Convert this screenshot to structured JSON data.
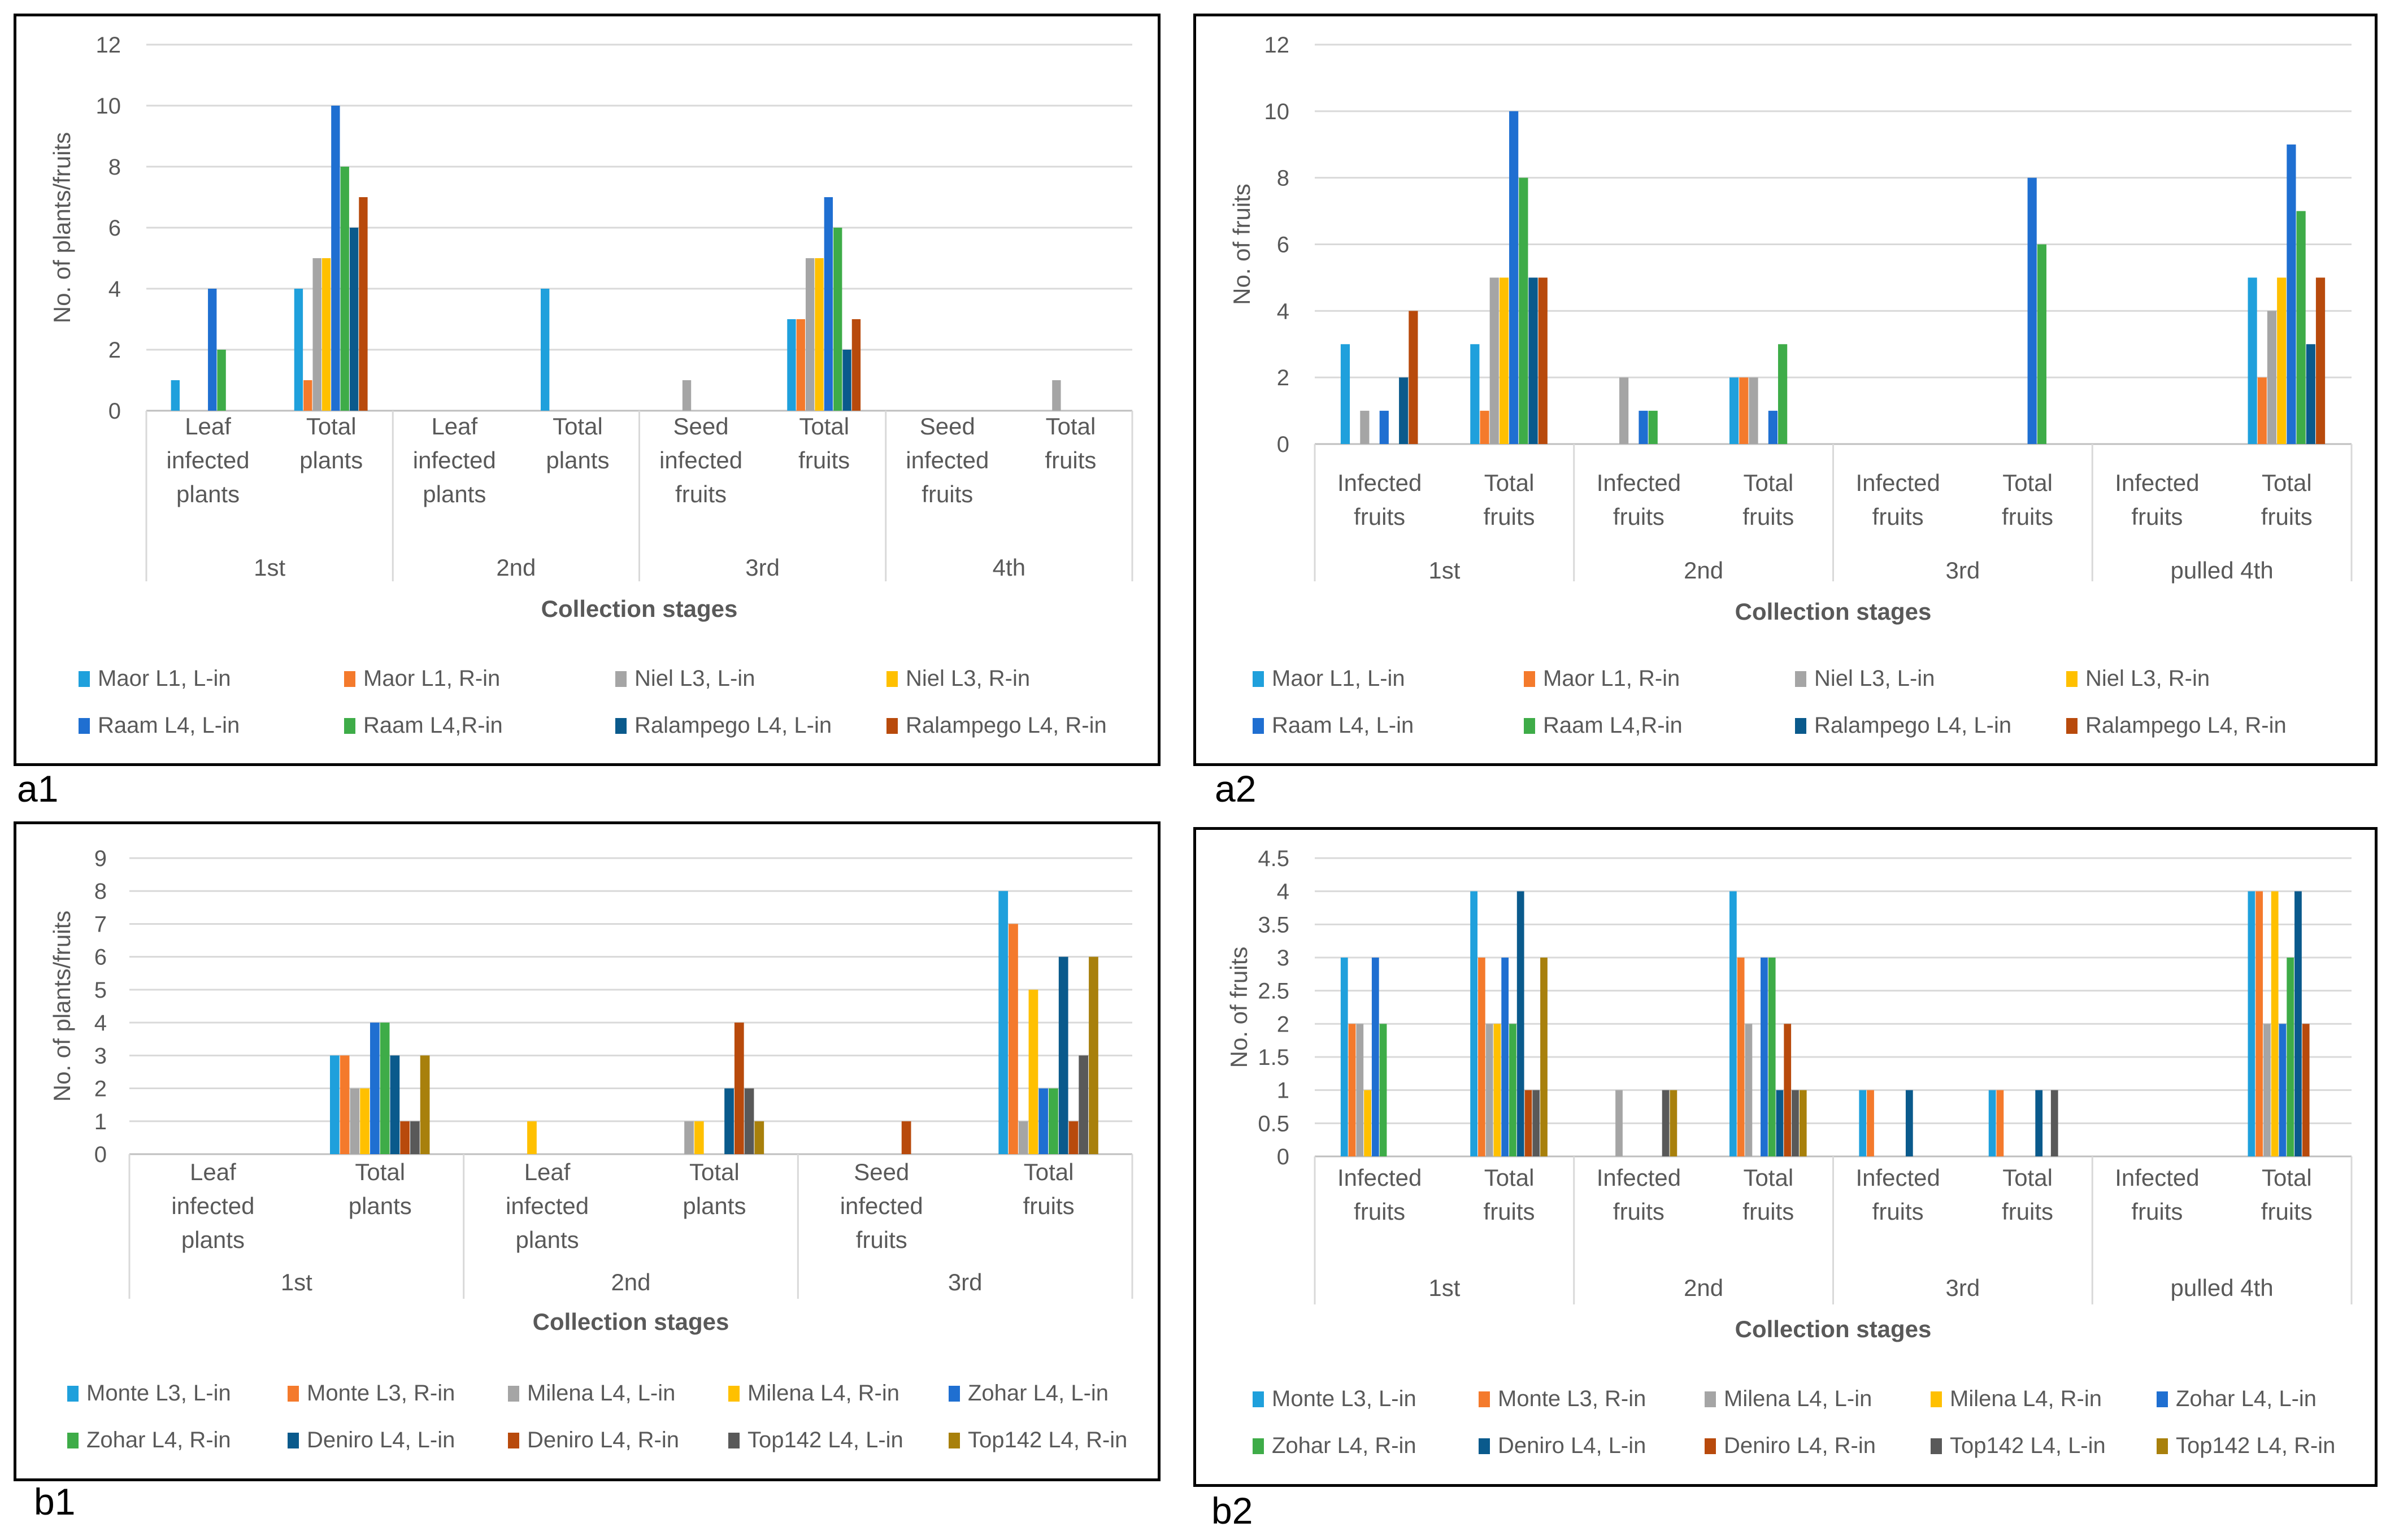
{
  "figure": {
    "panel_labels": [
      "a1",
      "a2",
      "b1",
      "b2"
    ]
  },
  "chart_data": [
    {
      "id": "a1",
      "type": "bar",
      "title": "",
      "xlabel": "Collection stages",
      "ylabel": "No. of plants/fruits",
      "ylim": [
        0,
        12
      ],
      "yticks": [
        "0",
        "2",
        "4",
        "6",
        "8",
        "10",
        "12"
      ],
      "grid": true,
      "legend_position": "bottom",
      "groups": [
        {
          "label": "1st",
          "categories": [
            "Leaf infected plants",
            "Total plants"
          ]
        },
        {
          "label": "2nd",
          "categories": [
            "Leaf infected plants",
            "Total plants"
          ]
        },
        {
          "label": "3rd",
          "categories": [
            "Seed infected fruits",
            "Total fruits"
          ]
        },
        {
          "label": "4th",
          "categories": [
            "Seed infected fruits",
            "Total fruits"
          ]
        }
      ],
      "series": [
        {
          "name": "Maor L1, L-in",
          "color": "#1FA0DC",
          "values": [
            1,
            4,
            0,
            4,
            0,
            3,
            0,
            0
          ]
        },
        {
          "name": "Maor L1, R-in",
          "color": "#F47A2C",
          "values": [
            0,
            1,
            0,
            0,
            0,
            3,
            0,
            0
          ]
        },
        {
          "name": "Niel L3, L-in",
          "color": "#A5A5A5",
          "values": [
            0,
            5,
            0,
            0,
            1,
            5,
            0,
            1
          ]
        },
        {
          "name": "Niel L3, R-in",
          "color": "#FFC000",
          "values": [
            0,
            5,
            0,
            0,
            0,
            5,
            0,
            0
          ]
        },
        {
          "name": "Raam L4, L-in",
          "color": "#1F6FD1",
          "values": [
            4,
            10,
            0,
            0,
            0,
            7,
            0,
            0
          ]
        },
        {
          "name": "Raam L4,R-in",
          "color": "#3EAC48",
          "values": [
            2,
            8,
            0,
            0,
            0,
            6,
            0,
            0
          ]
        },
        {
          "name": "Ralampego L4, L-in",
          "color": "#0A5A8C",
          "values": [
            0,
            6,
            0,
            0,
            0,
            2,
            0,
            0
          ]
        },
        {
          "name": "Ralampego L4, R-in",
          "color": "#B84A0C",
          "values": [
            0,
            7,
            0,
            0,
            0,
            3,
            0,
            0
          ]
        }
      ]
    },
    {
      "id": "a2",
      "type": "bar",
      "title": "",
      "xlabel": "Collection stages",
      "ylabel": "No. of fruits",
      "ylim": [
        0,
        12
      ],
      "yticks": [
        "0",
        "2",
        "4",
        "6",
        "8",
        "10",
        "12"
      ],
      "grid": true,
      "legend_position": "bottom",
      "groups": [
        {
          "label": "1st",
          "categories": [
            "Infected fruits",
            "Total fruits"
          ]
        },
        {
          "label": "2nd",
          "categories": [
            "Infected fruits",
            "Total fruits"
          ]
        },
        {
          "label": "3rd",
          "categories": [
            "Infected fruits",
            "Total fruits"
          ]
        },
        {
          "label": "pulled 4th",
          "categories": [
            "Infected fruits",
            "Total fruits"
          ]
        }
      ],
      "series": [
        {
          "name": "Maor L1, L-in",
          "color": "#1FA0DC",
          "values": [
            3,
            3,
            0,
            2,
            0,
            0,
            0,
            5
          ]
        },
        {
          "name": "Maor L1, R-in",
          "color": "#F47A2C",
          "values": [
            0,
            1,
            0,
            2,
            0,
            0,
            0,
            2
          ]
        },
        {
          "name": "Niel L3, L-in",
          "color": "#A5A5A5",
          "values": [
            1,
            5,
            2,
            2,
            0,
            0,
            0,
            4
          ]
        },
        {
          "name": "Niel L3, R-in",
          "color": "#FFC000",
          "values": [
            0,
            5,
            0,
            0,
            0,
            0,
            0,
            5
          ]
        },
        {
          "name": "Raam L4, L-in",
          "color": "#1F6FD1",
          "values": [
            1,
            10,
            1,
            1,
            0,
            8,
            0,
            9
          ]
        },
        {
          "name": "Raam L4,R-in",
          "color": "#3EAC48",
          "values": [
            0,
            8,
            1,
            3,
            0,
            6,
            0,
            7
          ]
        },
        {
          "name": "Ralampego L4, L-in",
          "color": "#0A5A8C",
          "values": [
            2,
            5,
            0,
            0,
            0,
            0,
            0,
            3
          ]
        },
        {
          "name": "Ralampego L4, R-in",
          "color": "#B84A0C",
          "values": [
            4,
            5,
            0,
            0,
            0,
            0,
            0,
            5
          ]
        }
      ]
    },
    {
      "id": "b1",
      "type": "bar",
      "title": "",
      "xlabel": "Collection stages",
      "ylabel": "No. of plants/fruits",
      "ylim": [
        0,
        9
      ],
      "yticks": [
        "0",
        "1",
        "2",
        "3",
        "4",
        "5",
        "6",
        "7",
        "8",
        "9"
      ],
      "grid": true,
      "legend_position": "bottom",
      "groups": [
        {
          "label": "1st",
          "categories": [
            "Leaf infected plants",
            "Total plants"
          ]
        },
        {
          "label": "2nd",
          "categories": [
            "Leaf infected plants",
            "Total plants"
          ]
        },
        {
          "label": "3rd",
          "categories": [
            "Seed infected fruits",
            "Total fruits"
          ]
        }
      ],
      "series": [
        {
          "name": "Monte L3, L-in",
          "color": "#1FA0DC",
          "values": [
            0,
            3,
            0,
            0,
            0,
            8
          ]
        },
        {
          "name": "Monte L3, R-in",
          "color": "#F47A2C",
          "values": [
            0,
            3,
            0,
            0,
            0,
            7
          ]
        },
        {
          "name": "Milena L4, L-in",
          "color": "#A5A5A5",
          "values": [
            0,
            2,
            0,
            1,
            0,
            1
          ]
        },
        {
          "name": "Milena L4, R-in",
          "color": "#FFC000",
          "values": [
            0,
            2,
            1,
            1,
            0,
            5
          ]
        },
        {
          "name": "Zohar L4, L-in",
          "color": "#1F6FD1",
          "values": [
            0,
            4,
            0,
            0,
            0,
            2
          ]
        },
        {
          "name": "Zohar L4, R-in",
          "color": "#3EAC48",
          "values": [
            0,
            4,
            0,
            0,
            0,
            2
          ]
        },
        {
          "name": "Deniro L4, L-in",
          "color": "#0A5A8C",
          "values": [
            0,
            3,
            0,
            2,
            0,
            6
          ]
        },
        {
          "name": "Deniro L4, R-in",
          "color": "#B84A0C",
          "values": [
            0,
            1,
            0,
            4,
            1,
            1
          ]
        },
        {
          "name": "Top142 L4, L-in",
          "color": "#595959",
          "values": [
            0,
            1,
            0,
            2,
            0,
            3
          ]
        },
        {
          "name": "Top142 L4, R-in",
          "color": "#A8800C",
          "values": [
            0,
            3,
            0,
            1,
            0,
            6
          ]
        }
      ]
    },
    {
      "id": "b2",
      "type": "bar",
      "title": "",
      "xlabel": "Collection stages",
      "ylabel": "No. of fruits",
      "ylim": [
        0,
        4.5
      ],
      "yticks": [
        "0",
        "0.5",
        "1",
        "1.5",
        "2",
        "2.5",
        "3",
        "3.5",
        "4",
        "4.5"
      ],
      "grid": true,
      "legend_position": "bottom",
      "groups": [
        {
          "label": "1st",
          "categories": [
            "Infected fruits",
            "Total fruits"
          ]
        },
        {
          "label": "2nd",
          "categories": [
            "Infected fruits",
            "Total fruits"
          ]
        },
        {
          "label": "3rd",
          "categories": [
            "Infected fruits",
            "Total fruits"
          ]
        },
        {
          "label": "pulled 4th",
          "categories": [
            "Infected fruits",
            "Total fruits"
          ]
        }
      ],
      "series": [
        {
          "name": "Monte L3, L-in",
          "color": "#1FA0DC",
          "values": [
            3,
            4,
            0,
            4,
            1,
            1,
            0,
            4
          ]
        },
        {
          "name": "Monte L3, R-in",
          "color": "#F47A2C",
          "values": [
            2,
            3,
            0,
            3,
            1,
            1,
            0,
            4
          ]
        },
        {
          "name": "Milena L4, L-in",
          "color": "#A5A5A5",
          "values": [
            2,
            2,
            1,
            2,
            0,
            0,
            0,
            2
          ]
        },
        {
          "name": "Milena L4, R-in",
          "color": "#FFC000",
          "values": [
            1,
            2,
            0,
            0,
            0,
            0,
            0,
            4
          ]
        },
        {
          "name": "Zohar L4, L-in",
          "color": "#1F6FD1",
          "values": [
            3,
            3,
            0,
            3,
            0,
            0,
            0,
            2
          ]
        },
        {
          "name": "Zohar L4, R-in",
          "color": "#3EAC48",
          "values": [
            2,
            2,
            0,
            3,
            0,
            0,
            0,
            3
          ]
        },
        {
          "name": "Deniro L4, L-in",
          "color": "#0A5A8C",
          "values": [
            0,
            4,
            0,
            1,
            1,
            1,
            0,
            4
          ]
        },
        {
          "name": "Deniro L4, R-in",
          "color": "#B84A0C",
          "values": [
            0,
            1,
            0,
            2,
            0,
            0,
            0,
            2
          ]
        },
        {
          "name": "Top142 L4, L-in",
          "color": "#595959",
          "values": [
            0,
            1,
            1,
            1,
            0,
            1,
            0,
            0
          ]
        },
        {
          "name": "Top142 L4, R-in",
          "color": "#A8800C",
          "values": [
            0,
            3,
            1,
            1,
            0,
            0,
            0,
            0
          ]
        }
      ]
    }
  ]
}
